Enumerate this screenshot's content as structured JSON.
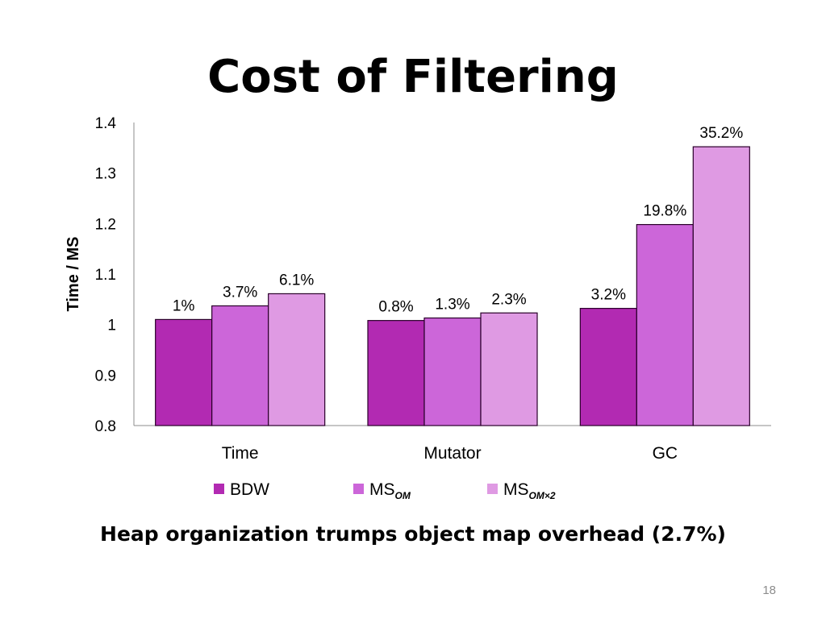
{
  "slide": {
    "title": "Cost of Filtering",
    "caption": "Heap organization trumps object map overhead (2.7%)",
    "page_number": "18"
  },
  "chart_data": {
    "type": "bar",
    "ylabel": "Time / MS",
    "xlabel": "",
    "ylim": [
      0.8,
      1.4
    ],
    "yticks": [
      "0.8",
      "0.9",
      "1",
      "1.1",
      "1.2",
      "1.3",
      "1.4"
    ],
    "grid": false,
    "legend_position": "bottom",
    "categories": [
      "Time",
      "Mutator",
      "GC"
    ],
    "series": [
      {
        "name": "BDW",
        "name_sub": "",
        "color": "#b22ab2",
        "values": [
          1.01,
          1.008,
          1.032
        ],
        "labels": [
          "1%",
          "0.8%",
          "3.2%"
        ]
      },
      {
        "name": "MS",
        "name_sub": "OM",
        "color": "#cc66d9",
        "values": [
          1.037,
          1.013,
          1.198
        ],
        "labels": [
          "3.7%",
          "1.3%",
          "19.8%"
        ]
      },
      {
        "name": "MS",
        "name_sub": "OM×2",
        "color": "#df9ae3",
        "values": [
          1.061,
          1.023,
          1.352
        ],
        "labels": [
          "6.1%",
          "2.3%",
          "35.2%"
        ]
      }
    ]
  }
}
